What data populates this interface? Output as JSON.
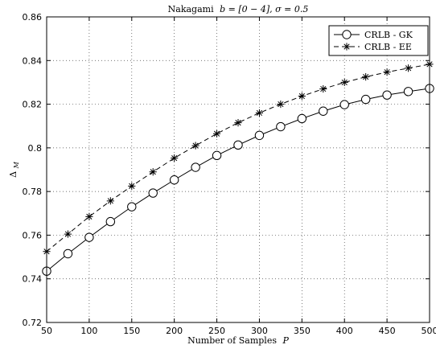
{
  "chart_data": {
    "type": "line",
    "title_prefix": "Nakagami",
    "title_math": "b = [0 − 4], σ = 0.5",
    "xlabel_text": "Number of Samples",
    "xlabel_var": "P",
    "ylabel": "Δ",
    "ylabel_sub": "M",
    "xlim": [
      50,
      500
    ],
    "ylim": [
      0.72,
      0.86
    ],
    "xticks": [
      50,
      100,
      150,
      200,
      250,
      300,
      350,
      400,
      450,
      500
    ],
    "yticks": [
      0.72,
      0.74,
      0.76,
      0.78,
      0.8,
      0.82,
      0.84,
      0.86
    ],
    "ytick_labels": [
      "0.72",
      "0.74",
      "0.76",
      "0.78",
      "0.8",
      "0.82",
      "0.84",
      "0.86"
    ],
    "grid": true,
    "legend_position": "top-right",
    "x": [
      50,
      75,
      100,
      125,
      150,
      175,
      200,
      225,
      250,
      275,
      300,
      325,
      350,
      375,
      400,
      425,
      450,
      475,
      500
    ],
    "series": [
      {
        "name": "CRLB - GK",
        "marker": "circle",
        "line": "solid",
        "color": "#000000",
        "values": [
          0.7435,
          0.7515,
          0.759,
          0.7662,
          0.773,
          0.7793,
          0.7853,
          0.7911,
          0.7965,
          0.8013,
          0.8057,
          0.8097,
          0.8134,
          0.8168,
          0.8198,
          0.8222,
          0.8242,
          0.8258,
          0.8272
        ]
      },
      {
        "name": "CRLB - EE",
        "marker": "asterisk",
        "line": "dashed",
        "color": "#000000",
        "values": [
          0.7525,
          0.7605,
          0.7685,
          0.7757,
          0.7825,
          0.789,
          0.7953,
          0.801,
          0.8065,
          0.8115,
          0.816,
          0.82,
          0.8237,
          0.827,
          0.83,
          0.8325,
          0.8347,
          0.8365,
          0.8383
        ]
      }
    ]
  }
}
